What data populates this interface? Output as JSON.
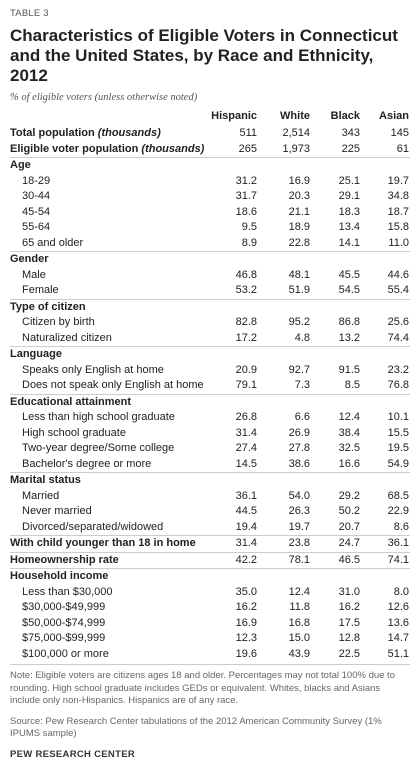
{
  "table_label": "TABLE 3",
  "title": "Characteristics of Eligible Voters in Connecticut and the United States, by Race and Ethnicity, 2012",
  "subtitle": "% of eligible voters (unless otherwise noted)",
  "columns": [
    "Hispanic",
    "White",
    "Black",
    "Asian"
  ],
  "rows": [
    {
      "type": "total",
      "label": "Total population",
      "label_note": "(thousands)",
      "values": [
        "511",
        "2,514",
        "343",
        "145"
      ]
    },
    {
      "type": "total",
      "label": "Eligible voter population",
      "label_note": "(thousands)",
      "values": [
        "265",
        "1,973",
        "225",
        "61"
      ]
    },
    {
      "type": "category",
      "label": "Age"
    },
    {
      "type": "item",
      "label": "18-29",
      "values": [
        "31.2",
        "16.9",
        "25.1",
        "19.7"
      ]
    },
    {
      "type": "item",
      "label": "30-44",
      "values": [
        "31.7",
        "20.3",
        "29.1",
        "34.8"
      ]
    },
    {
      "type": "item",
      "label": "45-54",
      "values": [
        "18.6",
        "21.1",
        "18.3",
        "18.7"
      ]
    },
    {
      "type": "item",
      "label": "55-64",
      "values": [
        "9.5",
        "18.9",
        "13.4",
        "15.8"
      ]
    },
    {
      "type": "item",
      "label": "65 and older",
      "values": [
        "8.9",
        "22.8",
        "14.1",
        "11.0"
      ]
    },
    {
      "type": "category",
      "label": "Gender"
    },
    {
      "type": "item",
      "label": "Male",
      "values": [
        "46.8",
        "48.1",
        "45.5",
        "44.6"
      ]
    },
    {
      "type": "item",
      "label": "Female",
      "values": [
        "53.2",
        "51.9",
        "54.5",
        "55.4"
      ]
    },
    {
      "type": "category",
      "label": "Type of citizen"
    },
    {
      "type": "item",
      "label": "Citizen by birth",
      "values": [
        "82.8",
        "95.2",
        "86.8",
        "25.6"
      ]
    },
    {
      "type": "item",
      "label": "Naturalized citizen",
      "values": [
        "17.2",
        "4.8",
        "13.2",
        "74.4"
      ]
    },
    {
      "type": "category",
      "label": "Language"
    },
    {
      "type": "item",
      "label": "Speaks only English at home",
      "values": [
        "20.9",
        "92.7",
        "91.5",
        "23.2"
      ]
    },
    {
      "type": "item",
      "label": "Does not speak only English at home",
      "values": [
        "79.1",
        "7.3",
        "8.5",
        "76.8"
      ]
    },
    {
      "type": "category",
      "label": "Educational attainment"
    },
    {
      "type": "item",
      "label": "Less than high school graduate",
      "values": [
        "26.8",
        "6.6",
        "12.4",
        "10.1"
      ]
    },
    {
      "type": "item",
      "label": "High school graduate",
      "values": [
        "31.4",
        "26.9",
        "38.4",
        "15.5"
      ]
    },
    {
      "type": "item",
      "label": "Two-year degree/Some college",
      "values": [
        "27.4",
        "27.8",
        "32.5",
        "19.5"
      ]
    },
    {
      "type": "item",
      "label": "Bachelor's degree or more",
      "values": [
        "14.5",
        "38.6",
        "16.6",
        "54.9"
      ]
    },
    {
      "type": "category",
      "label": "Marital status"
    },
    {
      "type": "item",
      "label": "Married",
      "values": [
        "36.1",
        "54.0",
        "29.2",
        "68.5"
      ]
    },
    {
      "type": "item",
      "label": "Never married",
      "values": [
        "44.5",
        "26.3",
        "50.2",
        "22.9"
      ]
    },
    {
      "type": "item",
      "label": "Divorced/separated/widowed",
      "values": [
        "19.4",
        "19.7",
        "20.7",
        "8.6"
      ]
    },
    {
      "type": "category-values",
      "label": "With child younger than 18 in home",
      "values": [
        "31.4",
        "23.8",
        "24.7",
        "36.1"
      ]
    },
    {
      "type": "category-values",
      "label": "Homeownership rate",
      "values": [
        "42.2",
        "78.1",
        "46.5",
        "74.1"
      ]
    },
    {
      "type": "category",
      "label": "Household income"
    },
    {
      "type": "item",
      "label": "Less than $30,000",
      "values": [
        "35.0",
        "12.4",
        "31.0",
        "8.0"
      ]
    },
    {
      "type": "item",
      "label": "$30,000-$49,999",
      "values": [
        "16.2",
        "11.8",
        "16.2",
        "12.6"
      ]
    },
    {
      "type": "item",
      "label": "$50,000-$74,999",
      "values": [
        "16.9",
        "16.8",
        "17.5",
        "13.6"
      ]
    },
    {
      "type": "item",
      "label": "$75,000-$99,999",
      "values": [
        "12.3",
        "15.0",
        "12.8",
        "14.7"
      ]
    },
    {
      "type": "item",
      "label": "$100,000 or more",
      "values": [
        "19.6",
        "43.9",
        "22.5",
        "51.1"
      ]
    }
  ],
  "note": "Note: Eligible voters are citizens ages 18 and older. Percentages may not total 100% due to rounding. High school graduate includes GEDs or equivalent. Whites, blacks and Asians include only non-Hispanics. Hispanics are of any race.",
  "source": "Source: Pew Research Center tabulations of the 2012 American Community Survey (1% IPUMS sample)",
  "brand": "PEW RESEARCH CENTER"
}
